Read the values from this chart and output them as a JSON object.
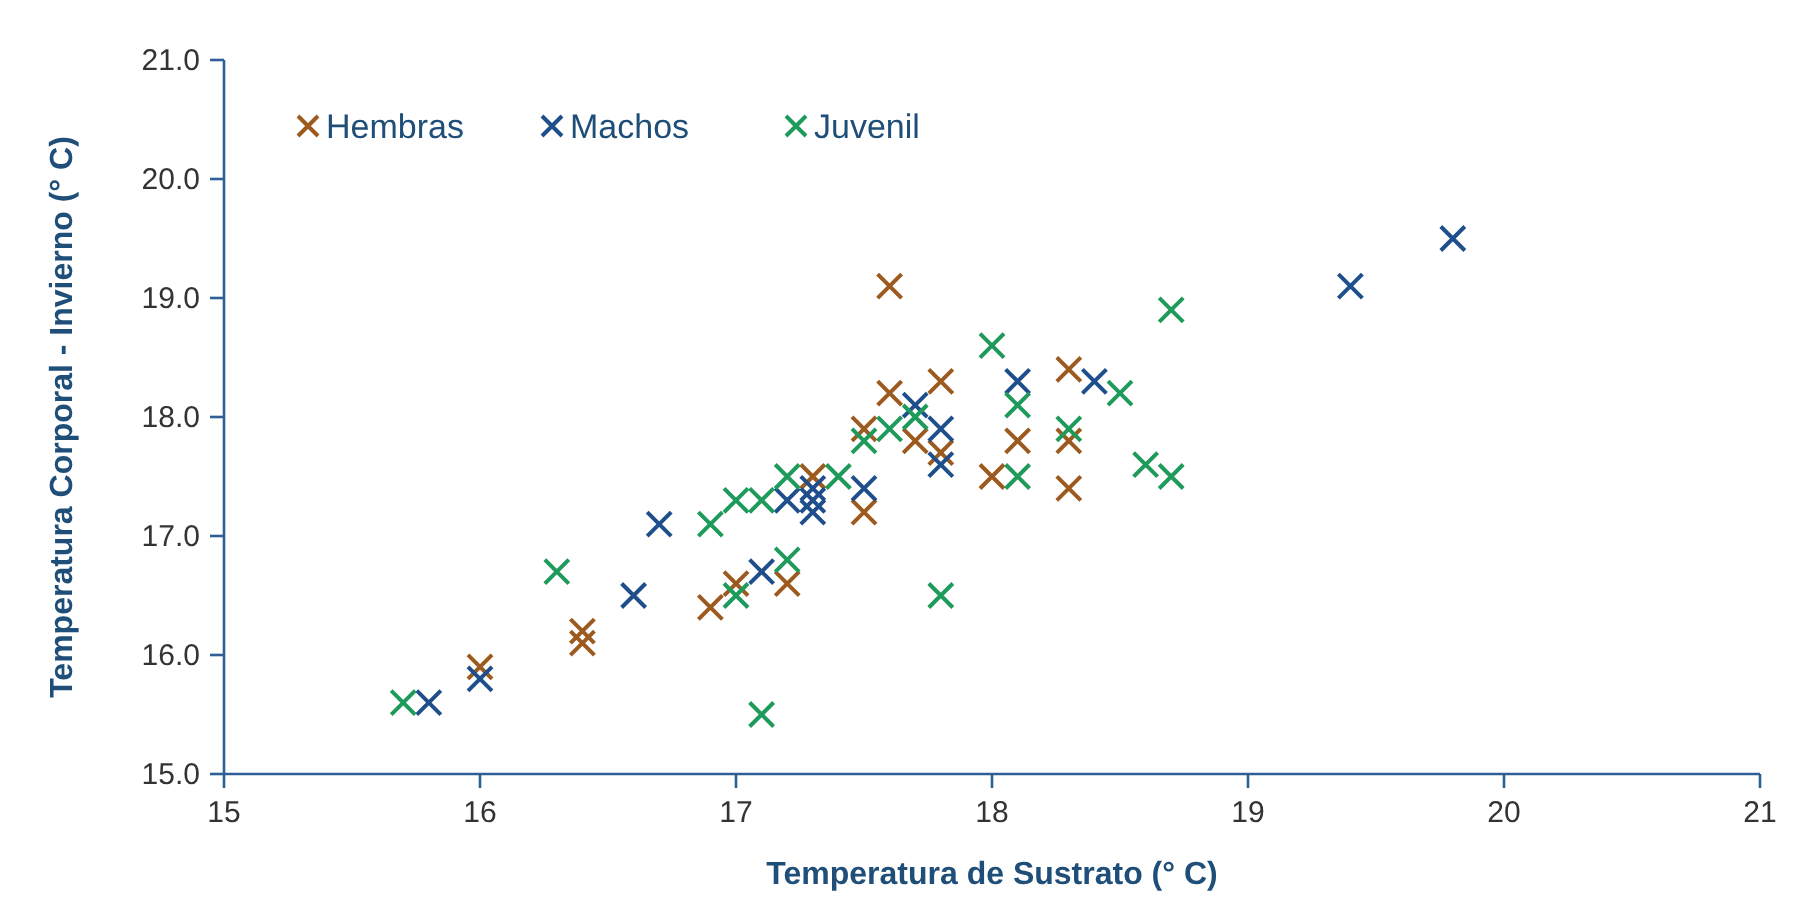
{
  "chart_data": {
    "type": "scatter",
    "xlabel": "Temperatura de Sustrato (° C)",
    "ylabel": "Temperatura Corporal - Invierno (° C)",
    "xlim": [
      15,
      21
    ],
    "xticks": [
      15,
      16,
      17,
      18,
      19,
      20,
      21
    ],
    "ylim": [
      15,
      21
    ],
    "yticks": [
      {
        "value": 15,
        "label": "15.0"
      },
      {
        "value": 16,
        "label": "16.0"
      },
      {
        "value": 17,
        "label": "17.0"
      },
      {
        "value": 18,
        "label": "18.0"
      },
      {
        "value": 19,
        "label": "19.0"
      },
      {
        "value": 20,
        "label": "20.0"
      },
      {
        "value": 21,
        "label": "21.0"
      }
    ],
    "grid": false,
    "legend": "top left",
    "marker": "cross",
    "series": [
      {
        "name": "Hembras",
        "color": "#9c5a1e",
        "x": [
          16.0,
          16.4,
          16.4,
          16.9,
          17.0,
          17.2,
          17.3,
          17.5,
          17.5,
          17.6,
          17.6,
          17.7,
          17.8,
          17.8,
          18.0,
          18.1,
          18.3,
          18.3,
          18.3
        ],
        "values": [
          15.9,
          16.2,
          16.1,
          16.4,
          16.6,
          16.6,
          17.5,
          17.9,
          17.2,
          18.2,
          19.1,
          17.8,
          18.3,
          17.7,
          17.5,
          17.8,
          18.4,
          17.8,
          17.4
        ]
      },
      {
        "name": "Machos",
        "color": "#1f4e8c",
        "x": [
          15.8,
          16.0,
          16.6,
          16.7,
          17.1,
          17.2,
          17.3,
          17.3,
          17.3,
          17.5,
          17.7,
          17.8,
          17.8,
          18.1,
          18.4,
          19.4,
          19.8
        ],
        "values": [
          15.6,
          15.8,
          16.5,
          17.1,
          16.7,
          17.3,
          17.4,
          17.3,
          17.2,
          17.4,
          18.1,
          17.9,
          17.6,
          18.3,
          18.3,
          19.1,
          19.5
        ]
      },
      {
        "name": "Juvenil",
        "color": "#1e9a5a",
        "x": [
          15.7,
          16.3,
          16.9,
          17.0,
          17.0,
          17.1,
          17.1,
          17.2,
          17.2,
          17.4,
          17.5,
          17.6,
          17.7,
          17.8,
          18.0,
          18.1,
          18.1,
          18.3,
          18.5,
          18.6,
          18.7,
          18.7
        ],
        "values": [
          15.6,
          16.7,
          17.1,
          16.5,
          17.3,
          15.5,
          17.3,
          16.8,
          17.5,
          17.5,
          17.8,
          17.9,
          18.0,
          16.5,
          18.6,
          18.1,
          17.5,
          17.9,
          18.2,
          17.6,
          17.5,
          18.9
        ]
      }
    ]
  }
}
